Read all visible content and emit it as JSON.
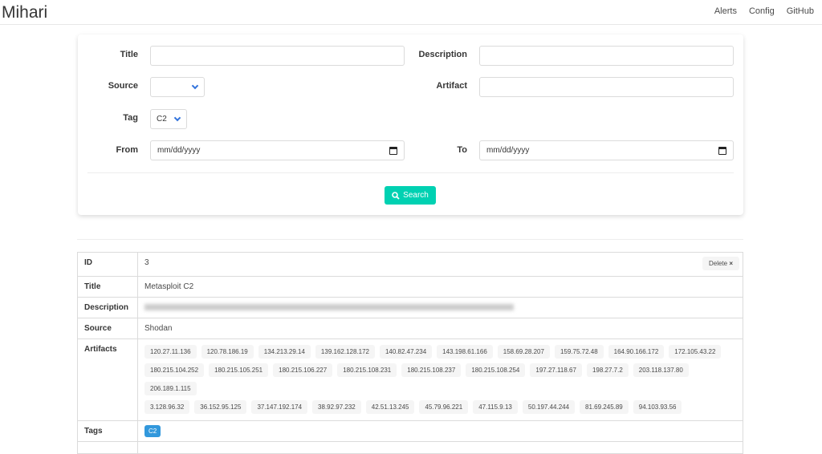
{
  "nav": {
    "brand": "Mihari",
    "links": [
      "Alerts",
      "Config",
      "GitHub"
    ]
  },
  "form": {
    "title_label": "Title",
    "title_value": "",
    "description_label": "Description",
    "description_value": "",
    "source_label": "Source",
    "source_value": "",
    "artifact_label": "Artifact",
    "artifact_value": "",
    "tag_label": "Tag",
    "tag_value": "C2",
    "from_label": "From",
    "from_placeholder": "mm/dd/yyyy",
    "to_label": "To",
    "to_placeholder": "mm/dd/yyyy",
    "search_label": "Search"
  },
  "alert": {
    "id_label": "ID",
    "id": "3",
    "delete_label": "Delete",
    "title_label": "Title",
    "title": "Metasploit C2",
    "description_label": "Description",
    "source_label": "Source",
    "source": "Shodan",
    "artifacts_label": "Artifacts",
    "artifacts": [
      "120.27.11.136",
      "120.78.186.19",
      "134.213.29.14",
      "139.162.128.172",
      "140.82.47.234",
      "143.198.61.166",
      "158.69.28.207",
      "159.75.72.48",
      "164.90.166.172",
      "172.105.43.22",
      "180.215.104.252",
      "180.215.105.251",
      "180.215.106.227",
      "180.215.108.231",
      "180.215.108.237",
      "180.215.108.254",
      "197.27.118.67",
      "198.27.7.2",
      "203.118.137.80",
      "206.189.1.115",
      "3.128.96.32",
      "36.152.95.125",
      "37.147.192.174",
      "38.92.97.232",
      "42.51.13.245",
      "45.79.96.221",
      "47.115.9.13",
      "50.197.44.244",
      "81.69.245.89",
      "94.103.93.56"
    ],
    "tags_label": "Tags",
    "tags": [
      "C2"
    ]
  },
  "colors": {
    "primary": "#00d1b2",
    "tag": "#3298dc",
    "link": "#3273dc"
  }
}
